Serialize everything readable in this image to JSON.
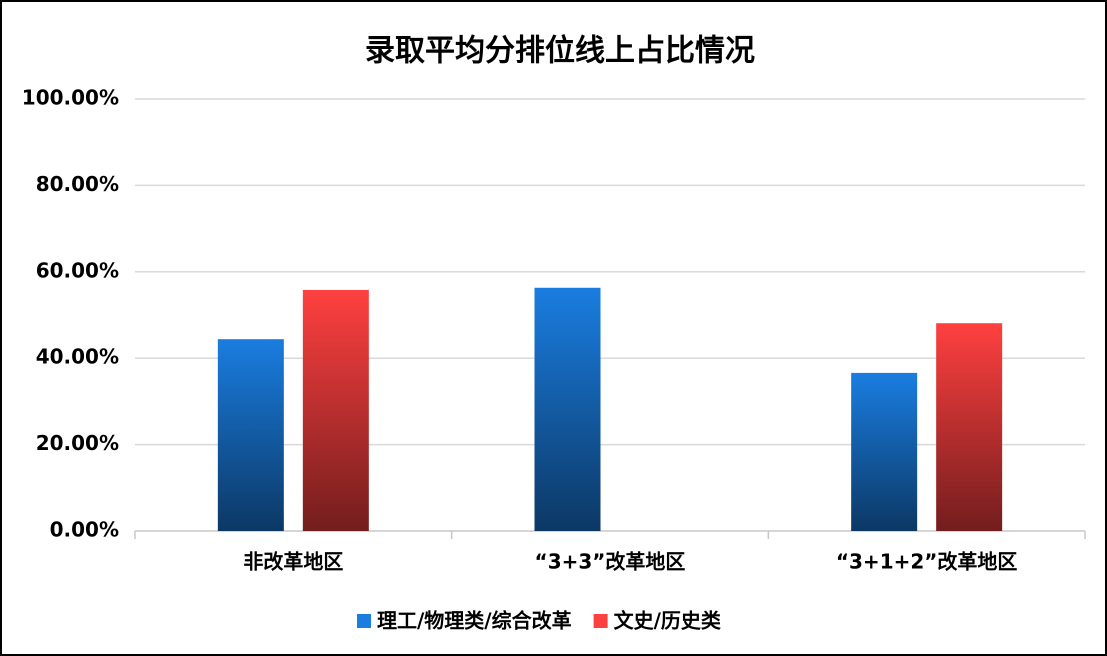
{
  "chart_data": {
    "type": "bar",
    "title": "录取平均分排位线上占比情况",
    "categories": [
      "非改革地区",
      "“3+3”改革地区",
      "“3+1+2”改革地区"
    ],
    "series": [
      {
        "name": "理工/物理类/综合改革",
        "color": "#1a7de0",
        "values": [
          44.4,
          56.3,
          36.6
        ]
      },
      {
        "name": "文史/历史类",
        "color": "#ff4040",
        "values": [
          55.8,
          null,
          48.1
        ]
      }
    ],
    "ylim": [
      0,
      100
    ],
    "yticks": [
      {
        "value": 0,
        "label": "0.00%"
      },
      {
        "value": 20,
        "label": "20.00%"
      },
      {
        "value": 40,
        "label": "40.00%"
      },
      {
        "value": 60,
        "label": "60.00%"
      },
      {
        "value": 80,
        "label": "80.00%"
      },
      {
        "value": 100,
        "label": "100.00%"
      }
    ],
    "grid": true,
    "legend": "bottom"
  }
}
